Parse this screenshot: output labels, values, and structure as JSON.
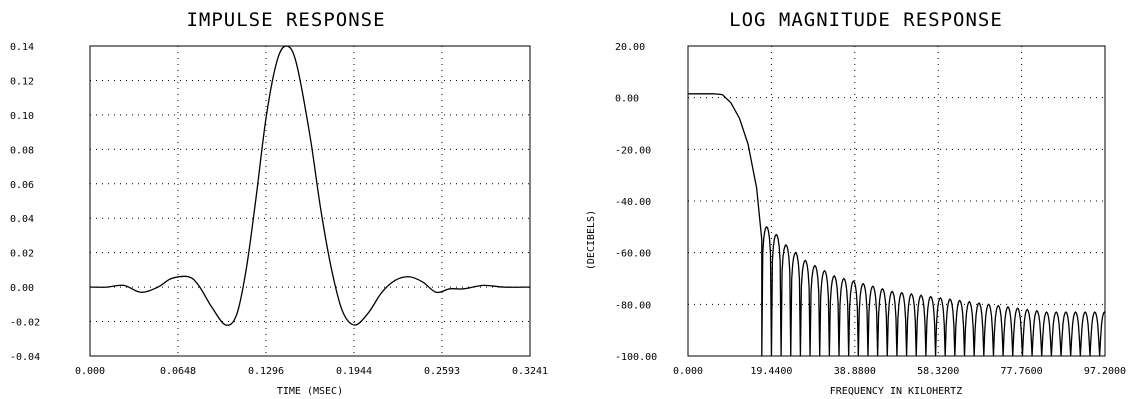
{
  "chart_data": [
    {
      "type": "line",
      "title": "IMPULSE RESPONSE",
      "xlabel": "TIME (MSEC)",
      "ylabel": "",
      "xlim": [
        0,
        0.3241
      ],
      "ylim": [
        -0.04,
        0.14
      ],
      "x_ticks": [
        "0.000",
        "0.0648",
        "0.1296",
        "0.1944",
        "0.2593",
        "0.3241"
      ],
      "y_ticks": [
        "0.14",
        "0.12",
        "0.10",
        "0.08",
        "0.06",
        "0.04",
        "0.02",
        "0.00",
        "-0.02",
        "-0.04"
      ],
      "grid": true,
      "series": [
        {
          "x": [
            0,
            0.0125,
            0.025,
            0.0375,
            0.05,
            0.06,
            0.0725,
            0.08,
            0.09,
            0.1,
            0.108,
            0.115,
            0.122,
            0.13,
            0.138,
            0.145,
            0.152,
            0.162,
            0.17,
            0.178,
            0.186,
            0.195,
            0.205,
            0.215,
            0.225,
            0.235,
            0.245,
            0.255,
            0.265,
            0.275,
            0.29,
            0.305,
            0.3241
          ],
          "y": [
            0.0,
            0.0,
            0.001,
            -0.003,
            0.0,
            0.005,
            0.006,
            0.001,
            -0.012,
            -0.022,
            -0.016,
            0.01,
            0.05,
            0.1,
            0.132,
            0.14,
            0.13,
            0.088,
            0.045,
            0.01,
            -0.014,
            -0.022,
            -0.015,
            -0.003,
            0.004,
            0.006,
            0.003,
            -0.003,
            -0.001,
            -0.001,
            0.001,
            0.0,
            0.0
          ]
        }
      ]
    },
    {
      "type": "line",
      "title": "LOG MAGNITUDE RESPONSE",
      "xlabel": "FREQUENCY IN KILOHERTZ",
      "ylabel": "(DECIBELS)",
      "xlim": [
        0,
        97.2
      ],
      "ylim": [
        -100,
        20
      ],
      "x_ticks": [
        "0.000",
        "19.4400",
        "38.8800",
        "58.3200",
        "77.7600",
        "97.2000"
      ],
      "y_ticks": [
        "20.00",
        "0.00",
        "-20.00",
        "-40.00",
        "-60.00",
        "-80.00",
        "-100.00"
      ],
      "grid": true,
      "passband": {
        "x": [
          0,
          2,
          4,
          6,
          8,
          10,
          12,
          14,
          16,
          17.2
        ],
        "y": [
          1.5,
          1.5,
          1.5,
          1.5,
          1.2,
          -2,
          -8,
          -18,
          -35,
          -55
        ]
      },
      "sidelobe_start_khz": 17.2,
      "sidelobe_spacing_khz": 2.25,
      "sidelobe_peaks_db": [
        -50,
        -53,
        -57,
        -60,
        -63,
        -65,
        -67,
        -69,
        -70,
        -71,
        -72,
        -73,
        -74,
        -75,
        -75.5,
        -76,
        -76.5,
        -77,
        -77.5,
        -78,
        -78.5,
        -79,
        -79.5,
        -80,
        -80.5,
        -81,
        -81.5,
        -82,
        -82.5,
        -83,
        -83,
        -83,
        -83,
        -83,
        -83,
        -83
      ],
      "null_floor_db": -100
    }
  ]
}
